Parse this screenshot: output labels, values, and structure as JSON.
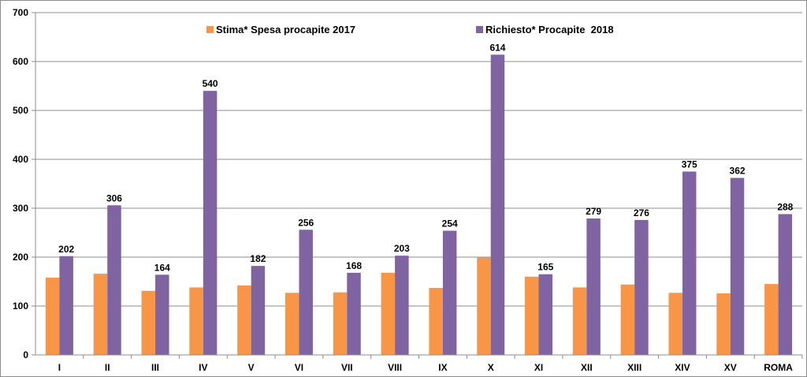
{
  "chart_data": {
    "type": "bar",
    "categories": [
      "I",
      "II",
      "III",
      "IV",
      "V",
      "VI",
      "VII",
      "VIII",
      "IX",
      "X",
      "XI",
      "XII",
      "XIII",
      "XIV",
      "XV",
      "ROMA"
    ],
    "series": [
      {
        "name": "Stima* Spesa procapite 2017",
        "color": "#F79646",
        "values": [
          158,
          166,
          131,
          138,
          142,
          127,
          128,
          168,
          137,
          199,
          160,
          138,
          144,
          127,
          126,
          145
        ],
        "show_labels": false
      },
      {
        "name": "Richiesto* Procapite  2018",
        "color": "#8064A2",
        "values": [
          202,
          306,
          164,
          540,
          182,
          256,
          168,
          203,
          254,
          614,
          165,
          279,
          276,
          375,
          362,
          288
        ],
        "show_labels": true
      }
    ],
    "ylim": [
      0,
      700
    ],
    "yticks": [
      0,
      100,
      200,
      300,
      400,
      500,
      600,
      700
    ],
    "grid": true,
    "legend_position": "top",
    "title": "",
    "xlabel": "",
    "ylabel": ""
  }
}
